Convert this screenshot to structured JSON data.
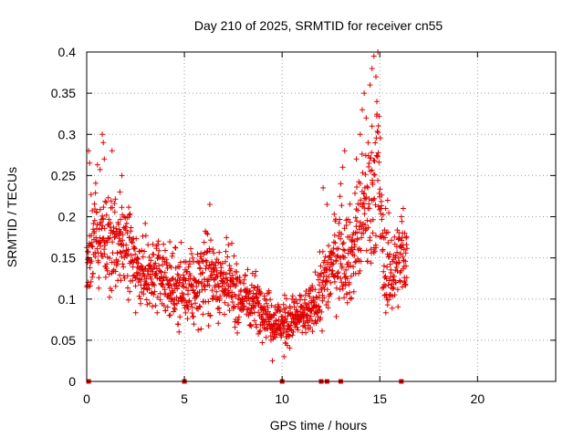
{
  "chart_data": {
    "type": "scatter",
    "title": "Day 210 of 2025, SRMTID for receiver cn55",
    "xlabel": "GPS time / hours",
    "ylabel": "SRMTID / TECUs",
    "xlim": [
      0,
      24
    ],
    "ylim": [
      0,
      0.4
    ],
    "x_ticks": [
      0,
      5,
      10,
      15,
      20
    ],
    "x_tick_labels": [
      "0",
      "5",
      "10",
      "15",
      "20"
    ],
    "y_ticks": [
      0,
      0.05,
      0.1,
      0.15,
      0.2,
      0.25,
      0.3,
      0.35,
      0.4
    ],
    "y_tick_labels": [
      "0",
      "0.05",
      "0.1",
      "0.15",
      "0.2",
      "0.25",
      "0.3",
      "0.35",
      "0.4"
    ],
    "grid": true,
    "marker": "plus",
    "series_color": "#e00000",
    "series": [
      {
        "name": "SRMTID",
        "trend": [
          [
            0.0,
            0.14,
            0.03
          ],
          [
            0.3,
            0.17,
            0.04
          ],
          [
            0.6,
            0.18,
            0.04
          ],
          [
            0.8,
            0.2,
            0.05
          ],
          [
            1.0,
            0.17,
            0.04
          ],
          [
            1.5,
            0.17,
            0.04
          ],
          [
            2.0,
            0.17,
            0.035
          ],
          [
            2.5,
            0.14,
            0.03
          ],
          [
            3.0,
            0.13,
            0.03
          ],
          [
            3.5,
            0.125,
            0.03
          ],
          [
            4.0,
            0.12,
            0.03
          ],
          [
            4.5,
            0.115,
            0.03
          ],
          [
            5.0,
            0.11,
            0.03
          ],
          [
            5.5,
            0.11,
            0.03
          ],
          [
            6.0,
            0.13,
            0.035
          ],
          [
            6.5,
            0.13,
            0.035
          ],
          [
            7.0,
            0.12,
            0.03
          ],
          [
            7.5,
            0.11,
            0.03
          ],
          [
            8.0,
            0.1,
            0.025
          ],
          [
            8.5,
            0.1,
            0.025
          ],
          [
            9.0,
            0.09,
            0.02
          ],
          [
            9.5,
            0.075,
            0.02
          ],
          [
            10.0,
            0.07,
            0.02
          ],
          [
            10.5,
            0.075,
            0.02
          ],
          [
            11.0,
            0.08,
            0.02
          ],
          [
            11.5,
            0.085,
            0.02
          ],
          [
            12.0,
            0.11,
            0.03
          ],
          [
            12.5,
            0.14,
            0.035
          ],
          [
            13.0,
            0.16,
            0.04
          ],
          [
            13.5,
            0.15,
            0.04
          ],
          [
            14.0,
            0.19,
            0.05
          ],
          [
            14.5,
            0.22,
            0.06
          ],
          [
            14.9,
            0.26,
            0.07
          ],
          [
            15.2,
            0.14,
            0.04
          ],
          [
            15.6,
            0.13,
            0.035
          ],
          [
            16.0,
            0.15,
            0.035
          ],
          [
            16.4,
            0.15,
            0.03
          ]
        ],
        "highlights": [
          [
            0.1,
            0.28
          ],
          [
            0.15,
            0.265
          ],
          [
            0.8,
            0.3
          ],
          [
            0.85,
            0.29
          ],
          [
            0.9,
            0.27
          ],
          [
            1.3,
            0.28
          ],
          [
            1.8,
            0.25
          ],
          [
            1.7,
            0.23
          ],
          [
            6.3,
            0.215
          ],
          [
            9.5,
            0.025
          ],
          [
            10.1,
            0.03
          ],
          [
            12.1,
            0.235
          ],
          [
            12.3,
            0.215
          ],
          [
            13.2,
            0.28
          ],
          [
            13.1,
            0.26
          ],
          [
            13.0,
            0.24
          ],
          [
            13.8,
            0.27
          ],
          [
            14.0,
            0.3
          ],
          [
            14.1,
            0.33
          ],
          [
            14.2,
            0.35
          ],
          [
            14.3,
            0.32
          ],
          [
            14.5,
            0.36
          ],
          [
            14.6,
            0.38
          ],
          [
            14.7,
            0.395
          ],
          [
            14.8,
            0.37
          ],
          [
            14.9,
            0.4
          ],
          [
            14.85,
            0.34
          ],
          [
            14.6,
            0.31
          ],
          [
            14.4,
            0.29
          ],
          [
            15.4,
            0.22
          ],
          [
            15.3,
            0.21
          ],
          [
            16.2,
            0.21
          ],
          [
            16.1,
            0.2
          ]
        ],
        "zero_points": [
          0.1,
          5.0,
          10.0,
          12.0,
          12.3,
          13.0,
          16.1
        ]
      }
    ]
  }
}
